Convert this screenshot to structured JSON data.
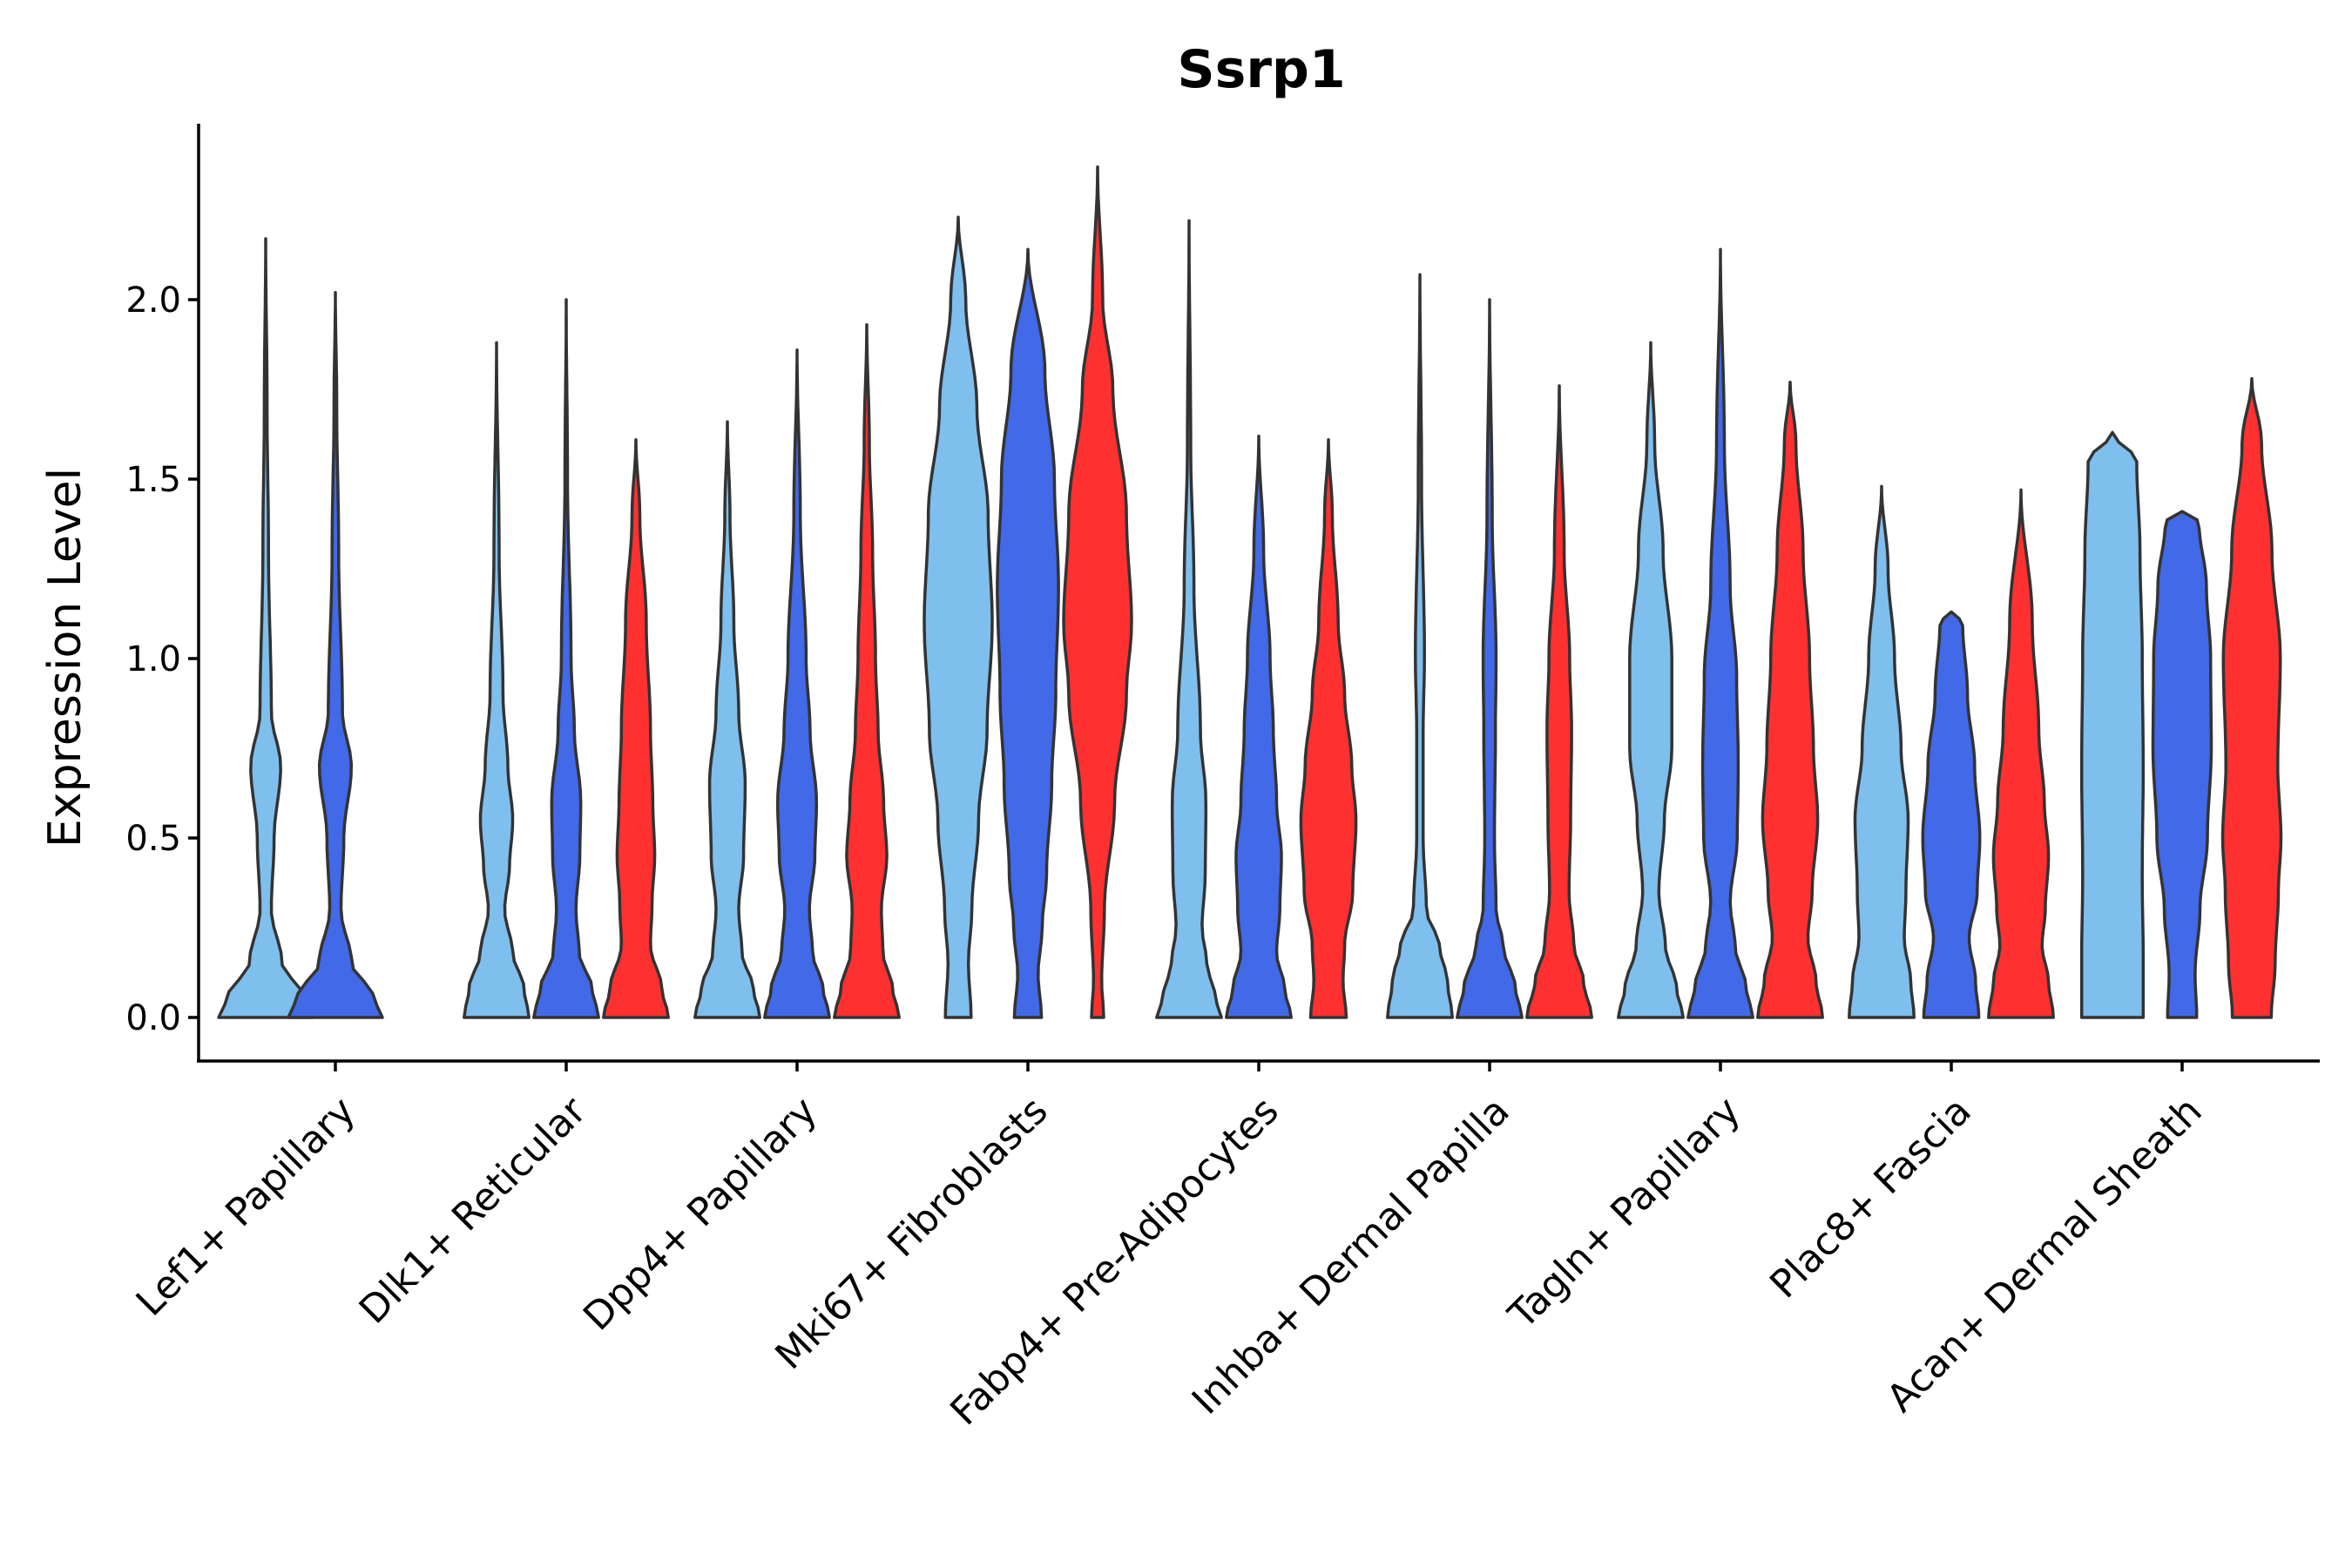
{
  "chart_data": {
    "type": "violin",
    "title": "Ssrp1",
    "xlabel": "",
    "ylabel": "Expression Level",
    "ylim": [
      -0.12,
      2.5
    ],
    "yticks": [
      0.0,
      0.5,
      1.0,
      1.5,
      2.0
    ],
    "ytick_labels": [
      "0.0",
      "0.5",
      "1.0",
      "1.5",
      "2.0"
    ],
    "categories": [
      "Lef1+ Papillary",
      "Dlk1+ Reticular",
      "Dpp4+ Papillary",
      "Mki67+ Fibroblasts",
      "Fabp4+ Pre-Adipocytes",
      "Inhba+ Dermal Papilla",
      "Tagln+ Papillary",
      "Plac8+ Fascia",
      "Acan+ Dermal Sheath"
    ],
    "series_colors": [
      "#7fbfed",
      "#4169e8",
      "#ff3030"
    ],
    "violins": [
      {
        "category": 0,
        "group": 0,
        "max": 2.17,
        "width": 0.9,
        "profile": [
          [
            0,
            1.0
          ],
          [
            0.06,
            0.8
          ],
          [
            0.15,
            0.35
          ],
          [
            0.3,
            0.12
          ],
          [
            0.5,
            0.18
          ],
          [
            0.7,
            0.32
          ],
          [
            0.85,
            0.12
          ],
          [
            1.3,
            0.06
          ],
          [
            1.7,
            0.03
          ],
          [
            2.17,
            0.0
          ]
        ]
      },
      {
        "category": 0,
        "group": 1,
        "max": 2.02,
        "width": 0.9,
        "profile": [
          [
            0,
            1.0
          ],
          [
            0.06,
            0.8
          ],
          [
            0.15,
            0.35
          ],
          [
            0.3,
            0.12
          ],
          [
            0.5,
            0.18
          ],
          [
            0.7,
            0.34
          ],
          [
            0.85,
            0.15
          ],
          [
            1.3,
            0.07
          ],
          [
            1.7,
            0.03
          ],
          [
            2.02,
            0.0
          ]
        ]
      },
      {
        "category": 1,
        "group": 0,
        "max": 1.88,
        "width": 0.62,
        "profile": [
          [
            0,
            1.0
          ],
          [
            0.08,
            0.85
          ],
          [
            0.18,
            0.5
          ],
          [
            0.3,
            0.25
          ],
          [
            0.42,
            0.4
          ],
          [
            0.55,
            0.5
          ],
          [
            0.7,
            0.35
          ],
          [
            0.9,
            0.2
          ],
          [
            1.3,
            0.08
          ],
          [
            1.88,
            0.0
          ]
        ]
      },
      {
        "category": 1,
        "group": 1,
        "max": 2.0,
        "width": 0.62,
        "profile": [
          [
            0,
            1.0
          ],
          [
            0.08,
            0.8
          ],
          [
            0.18,
            0.4
          ],
          [
            0.3,
            0.3
          ],
          [
            0.45,
            0.42
          ],
          [
            0.6,
            0.45
          ],
          [
            0.8,
            0.25
          ],
          [
            1.0,
            0.15
          ],
          [
            1.5,
            0.04
          ],
          [
            2.0,
            0.0
          ]
        ]
      },
      {
        "category": 1,
        "group": 2,
        "max": 1.61,
        "width": 0.62,
        "profile": [
          [
            0,
            1.0
          ],
          [
            0.08,
            0.8
          ],
          [
            0.2,
            0.45
          ],
          [
            0.32,
            0.5
          ],
          [
            0.45,
            0.58
          ],
          [
            0.6,
            0.52
          ],
          [
            0.8,
            0.45
          ],
          [
            1.1,
            0.32
          ],
          [
            1.4,
            0.12
          ],
          [
            1.61,
            0.0
          ]
        ]
      },
      {
        "category": 2,
        "group": 0,
        "max": 1.66,
        "width": 0.62,
        "profile": [
          [
            0,
            1.0
          ],
          [
            0.08,
            0.8
          ],
          [
            0.18,
            0.45
          ],
          [
            0.3,
            0.35
          ],
          [
            0.45,
            0.5
          ],
          [
            0.65,
            0.55
          ],
          [
            0.85,
            0.35
          ],
          [
            1.1,
            0.2
          ],
          [
            1.4,
            0.08
          ],
          [
            1.66,
            0.0
          ]
        ]
      },
      {
        "category": 2,
        "group": 1,
        "max": 1.86,
        "width": 0.62,
        "profile": [
          [
            0,
            1.0
          ],
          [
            0.08,
            0.8
          ],
          [
            0.18,
            0.48
          ],
          [
            0.3,
            0.38
          ],
          [
            0.45,
            0.55
          ],
          [
            0.6,
            0.6
          ],
          [
            0.8,
            0.4
          ],
          [
            1.0,
            0.28
          ],
          [
            1.4,
            0.1
          ],
          [
            1.86,
            0.0
          ]
        ]
      },
      {
        "category": 2,
        "group": 2,
        "max": 1.93,
        "width": 0.62,
        "profile": [
          [
            0,
            1.0
          ],
          [
            0.08,
            0.8
          ],
          [
            0.18,
            0.5
          ],
          [
            0.3,
            0.45
          ],
          [
            0.45,
            0.62
          ],
          [
            0.6,
            0.52
          ],
          [
            0.8,
            0.35
          ],
          [
            1.0,
            0.27
          ],
          [
            1.3,
            0.18
          ],
          [
            1.6,
            0.08
          ],
          [
            1.93,
            0.0
          ]
        ]
      },
      {
        "category": 3,
        "group": 0,
        "max": 2.23,
        "width": 0.65,
        "profile": [
          [
            0,
            0.38
          ],
          [
            0.15,
            0.3
          ],
          [
            0.3,
            0.4
          ],
          [
            0.55,
            0.6
          ],
          [
            0.8,
            0.85
          ],
          [
            1.1,
            1.0
          ],
          [
            1.4,
            0.88
          ],
          [
            1.7,
            0.55
          ],
          [
            2.0,
            0.22
          ],
          [
            2.23,
            0.0
          ]
        ]
      },
      {
        "category": 3,
        "group": 1,
        "max": 2.14,
        "width": 0.65,
        "profile": [
          [
            0,
            0.4
          ],
          [
            0.12,
            0.3
          ],
          [
            0.25,
            0.42
          ],
          [
            0.4,
            0.55
          ],
          [
            0.65,
            0.7
          ],
          [
            0.9,
            0.82
          ],
          [
            1.2,
            0.9
          ],
          [
            1.5,
            0.78
          ],
          [
            1.8,
            0.5
          ],
          [
            2.14,
            0.0
          ]
        ]
      },
      {
        "category": 3,
        "group": 2,
        "max": 2.37,
        "width": 0.65,
        "profile": [
          [
            0,
            0.18
          ],
          [
            0.1,
            0.12
          ],
          [
            0.3,
            0.2
          ],
          [
            0.6,
            0.5
          ],
          [
            0.9,
            0.85
          ],
          [
            1.1,
            1.0
          ],
          [
            1.4,
            0.85
          ],
          [
            1.75,
            0.45
          ],
          [
            2.0,
            0.15
          ],
          [
            2.37,
            0.0
          ]
        ]
      },
      {
        "category": 4,
        "group": 0,
        "max": 2.22,
        "width": 0.62,
        "profile": [
          [
            0,
            1.0
          ],
          [
            0.06,
            0.8
          ],
          [
            0.15,
            0.55
          ],
          [
            0.25,
            0.4
          ],
          [
            0.4,
            0.5
          ],
          [
            0.6,
            0.52
          ],
          [
            0.8,
            0.35
          ],
          [
            1.2,
            0.15
          ],
          [
            1.6,
            0.05
          ],
          [
            2.22,
            0.0
          ]
        ]
      },
      {
        "category": 4,
        "group": 1,
        "max": 1.62,
        "width": 0.62,
        "profile": [
          [
            0,
            1.0
          ],
          [
            0.08,
            0.8
          ],
          [
            0.18,
            0.55
          ],
          [
            0.3,
            0.65
          ],
          [
            0.45,
            0.7
          ],
          [
            0.6,
            0.55
          ],
          [
            0.8,
            0.45
          ],
          [
            1.0,
            0.35
          ],
          [
            1.3,
            0.15
          ],
          [
            1.62,
            0.0
          ]
        ]
      },
      {
        "category": 4,
        "group": 2,
        "max": 1.61,
        "width": 0.62,
        "profile": [
          [
            0,
            0.55
          ],
          [
            0.1,
            0.45
          ],
          [
            0.2,
            0.5
          ],
          [
            0.35,
            0.75
          ],
          [
            0.55,
            0.85
          ],
          [
            0.7,
            0.72
          ],
          [
            0.9,
            0.5
          ],
          [
            1.1,
            0.3
          ],
          [
            1.4,
            0.12
          ],
          [
            1.61,
            0.0
          ]
        ]
      },
      {
        "category": 5,
        "group": 0,
        "max": 2.07,
        "width": 0.62,
        "profile": [
          [
            0,
            1.0
          ],
          [
            0.1,
            0.85
          ],
          [
            0.2,
            0.6
          ],
          [
            0.3,
            0.2
          ],
          [
            0.5,
            0.1
          ],
          [
            0.8,
            0.1
          ],
          [
            1.0,
            0.14
          ],
          [
            1.5,
            0.05
          ],
          [
            2.07,
            0.0
          ]
        ]
      },
      {
        "category": 5,
        "group": 1,
        "max": 2.0,
        "width": 0.62,
        "profile": [
          [
            0,
            1.0
          ],
          [
            0.08,
            0.8
          ],
          [
            0.2,
            0.42
          ],
          [
            0.3,
            0.2
          ],
          [
            0.5,
            0.15
          ],
          [
            0.8,
            0.18
          ],
          [
            1.0,
            0.2
          ],
          [
            1.4,
            0.08
          ],
          [
            2.0,
            0.0
          ]
        ]
      },
      {
        "category": 5,
        "group": 2,
        "max": 1.76,
        "width": 0.62,
        "profile": [
          [
            0,
            1.0
          ],
          [
            0.1,
            0.75
          ],
          [
            0.2,
            0.45
          ],
          [
            0.35,
            0.3
          ],
          [
            0.55,
            0.35
          ],
          [
            0.8,
            0.38
          ],
          [
            1.0,
            0.32
          ],
          [
            1.3,
            0.15
          ],
          [
            1.76,
            0.0
          ]
        ]
      },
      {
        "category": 6,
        "group": 0,
        "max": 1.88,
        "width": 0.62,
        "profile": [
          [
            0,
            1.0
          ],
          [
            0.08,
            0.8
          ],
          [
            0.2,
            0.45
          ],
          [
            0.35,
            0.25
          ],
          [
            0.55,
            0.42
          ],
          [
            0.75,
            0.65
          ],
          [
            1.0,
            0.65
          ],
          [
            1.3,
            0.38
          ],
          [
            1.6,
            0.12
          ],
          [
            1.88,
            0.0
          ]
        ]
      },
      {
        "category": 6,
        "group": 1,
        "max": 2.14,
        "width": 0.62,
        "profile": [
          [
            0,
            1.0
          ],
          [
            0.08,
            0.8
          ],
          [
            0.2,
            0.45
          ],
          [
            0.32,
            0.3
          ],
          [
            0.5,
            0.52
          ],
          [
            0.7,
            0.55
          ],
          [
            0.95,
            0.5
          ],
          [
            1.2,
            0.3
          ],
          [
            1.6,
            0.12
          ],
          [
            2.14,
            0.0
          ]
        ]
      },
      {
        "category": 6,
        "group": 2,
        "max": 1.77,
        "width": 0.62,
        "profile": [
          [
            0,
            1.0
          ],
          [
            0.1,
            0.8
          ],
          [
            0.22,
            0.55
          ],
          [
            0.35,
            0.68
          ],
          [
            0.55,
            0.85
          ],
          [
            0.75,
            0.72
          ],
          [
            1.0,
            0.6
          ],
          [
            1.3,
            0.4
          ],
          [
            1.6,
            0.18
          ],
          [
            1.77,
            0.0
          ]
        ]
      },
      {
        "category": 7,
        "group": 0,
        "max": 1.48,
        "width": 0.62,
        "profile": [
          [
            0,
            1.0
          ],
          [
            0.1,
            0.9
          ],
          [
            0.22,
            0.7
          ],
          [
            0.35,
            0.75
          ],
          [
            0.55,
            0.82
          ],
          [
            0.75,
            0.6
          ],
          [
            1.0,
            0.4
          ],
          [
            1.25,
            0.2
          ],
          [
            1.48,
            0.0
          ]
        ]
      },
      {
        "category": 7,
        "group": 1,
        "max": 1.13,
        "width": 0.62,
        "profile": [
          [
            0,
            0.85
          ],
          [
            0.1,
            0.75
          ],
          [
            0.22,
            0.55
          ],
          [
            0.35,
            0.8
          ],
          [
            0.5,
            0.88
          ],
          [
            0.7,
            0.72
          ],
          [
            0.9,
            0.5
          ],
          [
            1.1,
            0.35
          ],
          [
            1.13,
            0.0
          ]
        ]
      },
      {
        "category": 7,
        "group": 2,
        "max": 1.47,
        "width": 0.62,
        "profile": [
          [
            0,
            1.0
          ],
          [
            0.1,
            0.85
          ],
          [
            0.2,
            0.65
          ],
          [
            0.3,
            0.75
          ],
          [
            0.45,
            0.85
          ],
          [
            0.6,
            0.72
          ],
          [
            0.8,
            0.55
          ],
          [
            1.1,
            0.35
          ],
          [
            1.47,
            0.0
          ]
        ]
      },
      {
        "category": 8,
        "group": 0,
        "max": 1.63,
        "width": 0.62,
        "profile": [
          [
            0,
            0.95
          ],
          [
            0.15,
            0.95
          ],
          [
            0.4,
            0.92
          ],
          [
            0.7,
            0.95
          ],
          [
            1.0,
            0.92
          ],
          [
            1.3,
            0.85
          ],
          [
            1.55,
            0.75
          ],
          [
            1.63,
            0.0
          ]
        ]
      },
      {
        "category": 8,
        "group": 1,
        "max": 1.41,
        "width": 0.62,
        "profile": [
          [
            0,
            0.45
          ],
          [
            0.12,
            0.4
          ],
          [
            0.3,
            0.55
          ],
          [
            0.5,
            0.78
          ],
          [
            0.75,
            0.9
          ],
          [
            1.0,
            0.88
          ],
          [
            1.2,
            0.75
          ],
          [
            1.38,
            0.52
          ],
          [
            1.41,
            0.0
          ]
        ]
      },
      {
        "category": 8,
        "group": 2,
        "max": 1.78,
        "width": 0.62,
        "profile": [
          [
            0,
            0.6
          ],
          [
            0.15,
            0.72
          ],
          [
            0.35,
            0.82
          ],
          [
            0.5,
            0.9
          ],
          [
            0.7,
            0.8
          ],
          [
            1.0,
            0.88
          ],
          [
            1.3,
            0.62
          ],
          [
            1.6,
            0.3
          ],
          [
            1.78,
            0.0
          ]
        ]
      }
    ]
  }
}
